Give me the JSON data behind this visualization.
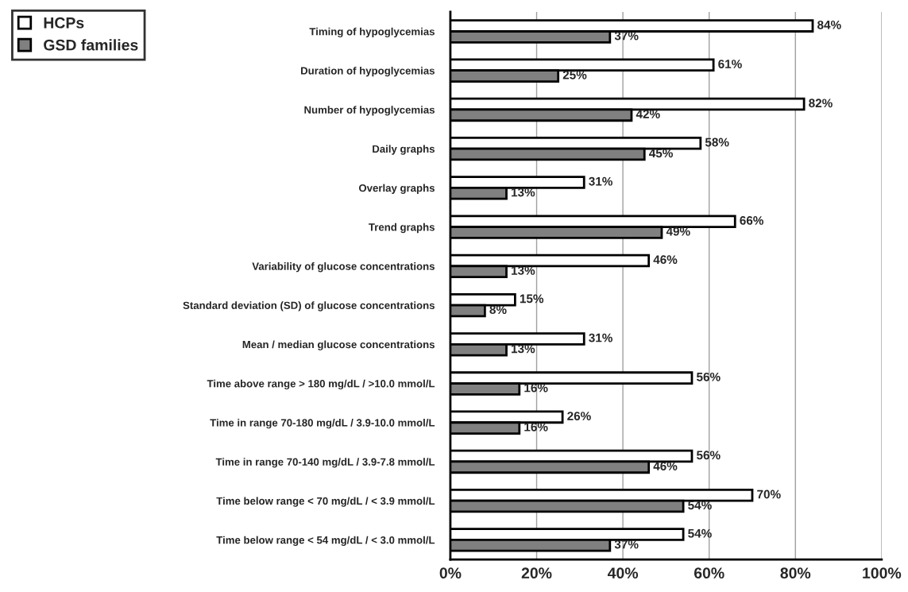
{
  "chart_data": {
    "type": "bar",
    "orientation": "horizontal",
    "categories": [
      "Timing of hypoglycemias",
      "Duration of hypoglycemias",
      "Number of hypoglycemias",
      "Daily graphs",
      "Overlay graphs",
      "Trend graphs",
      "Variability of glucose concentrations",
      "Standard deviation (SD) of glucose concentrations",
      "Mean / median glucose concentrations",
      "Time above range > 180 mg/dL / >10.0 mmol/L",
      "Time in range 70-180 mg/dL / 3.9-10.0 mmol/L",
      "Time in range 70-140 mg/dL / 3.9-7.8 mmol/L",
      "Time below range < 70 mg/dL / < 3.9 mmol/L",
      "Time below range < 54 mg/dL / < 3.0 mmol/L"
    ],
    "series": [
      {
        "name": "HCPs",
        "color": "#ffffff",
        "values": [
          84,
          61,
          82,
          58,
          31,
          66,
          46,
          15,
          31,
          56,
          26,
          56,
          70,
          54
        ],
        "value_labels": [
          "84%",
          "61%",
          "82%",
          "58%",
          "31%",
          "66%",
          "46%",
          "15%",
          "31%",
          "56%",
          "26%",
          "56%",
          "70%",
          "54%"
        ]
      },
      {
        "name": "GSD families",
        "color": "#808080",
        "values": [
          37,
          25,
          42,
          45,
          13,
          49,
          13,
          8,
          13,
          16,
          16,
          46,
          54,
          37
        ],
        "value_labels": [
          "37%",
          "25%",
          "42%",
          "45%",
          "13%",
          "49%",
          "13%",
          "8%",
          "13%",
          "16%",
          "16%",
          "46%",
          "54%",
          "37%"
        ]
      }
    ],
    "xlim": [
      0,
      100
    ],
    "xticks": [
      {
        "value": 0,
        "label": "0%"
      },
      {
        "value": 20,
        "label": "20%"
      },
      {
        "value": 40,
        "label": "40%"
      },
      {
        "value": 60,
        "label": "60%"
      },
      {
        "value": 80,
        "label": "80%"
      },
      {
        "value": 100,
        "label": "100%"
      }
    ],
    "grid": "x",
    "legend": "top left"
  }
}
